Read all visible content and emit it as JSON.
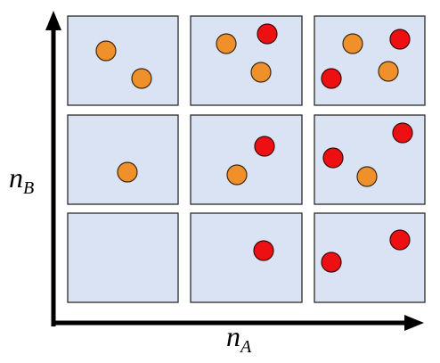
{
  "y_axis_label": {
    "symbol": "n",
    "subscript": "B"
  },
  "x_axis_label": {
    "symbol": "n",
    "subscript": "A"
  }
}
